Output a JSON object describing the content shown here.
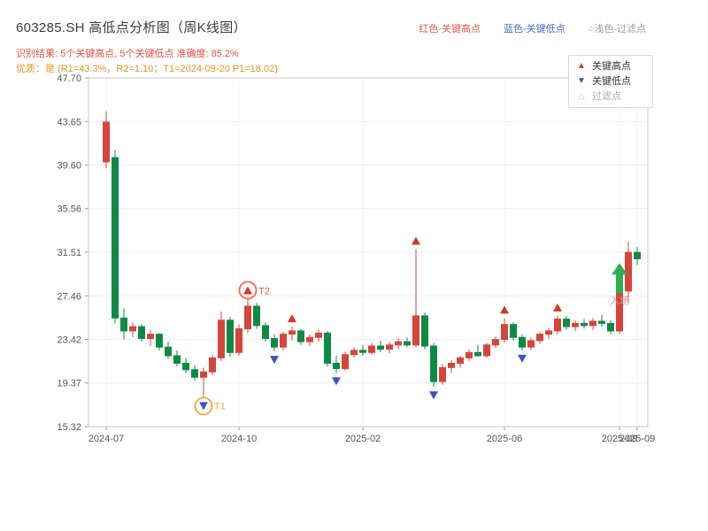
{
  "header": {
    "title": "603285.SH 高低点分析图（周K线图）",
    "top_legend": [
      {
        "text": "红色-关键高点",
        "color": "#e05a4e"
      },
      {
        "text": "蓝色-关键低点",
        "color": "#4769c9"
      },
      {
        "text": "○浅色-过滤点",
        "color": "#9aa0a6"
      }
    ],
    "result_line": "识别结果: 5个关键高点, 5个关键低点  准确度: 85.2%",
    "quality_line": "优质：是 (R1=43.3%，R2=1.10；T1=2024-09-20 P1=18.02)"
  },
  "legend_box": {
    "items": [
      {
        "marker": "▲",
        "color": "#cf3a2b",
        "label": "关键高点",
        "label_color": "#333333"
      },
      {
        "marker": "▼",
        "color": "#3b54c4",
        "label": "关键低点",
        "label_color": "#333333"
      },
      {
        "marker": "△",
        "color": "#c9c9c9",
        "label": "过滤点",
        "label_color": "#aaaaaa"
      }
    ]
  },
  "chart_data": {
    "type": "candlestick",
    "title": "603285.SH 高低点分析图（周K线图）",
    "y_min": 15.32,
    "y_max": 47.7,
    "y_ticks": [
      "15.32",
      "19.37",
      "23.42",
      "27.46",
      "31.51",
      "35.56",
      "39.60",
      "43.65",
      "47.70"
    ],
    "x_ticks": [
      {
        "i": 0,
        "label": "2024-07"
      },
      {
        "i": 15,
        "label": "2024-10"
      },
      {
        "i": 29,
        "label": "2025-02"
      },
      {
        "i": 45,
        "label": "2025-06"
      },
      {
        "i": 58,
        "label": "2025-09"
      },
      {
        "i": 60,
        "label": "2025-09"
      }
    ],
    "colors": {
      "up": "#d5453c",
      "down": "#0f8a46",
      "key_high": "#cf3a2b",
      "key_low": "#3b54c4",
      "entry": "#2fae58",
      "entry_label": "#d99090",
      "circle": "#f2a33c",
      "grid": "#ececec",
      "axis": "#c8c8c8",
      "tick_text": "#555555"
    },
    "candles": [
      {
        "d": "2024-07-05",
        "o": 39.9,
        "h": 44.6,
        "l": 39.3,
        "c": 43.6
      },
      {
        "d": "2024-07-12",
        "o": 40.3,
        "h": 41.0,
        "l": 24.9,
        "c": 25.4
      },
      {
        "d": "2024-07-19",
        "o": 25.4,
        "h": 26.3,
        "l": 23.4,
        "c": 24.2
      },
      {
        "d": "2024-07-26",
        "o": 24.2,
        "h": 25.0,
        "l": 23.6,
        "c": 24.6
      },
      {
        "d": "2024-08-02",
        "o": 24.6,
        "h": 24.8,
        "l": 23.2,
        "c": 23.5
      },
      {
        "d": "2024-08-09",
        "o": 23.5,
        "h": 24.3,
        "l": 22.8,
        "c": 23.9
      },
      {
        "d": "2024-08-16",
        "o": 23.9,
        "h": 24.0,
        "l": 22.4,
        "c": 22.7
      },
      {
        "d": "2024-08-23",
        "o": 22.7,
        "h": 23.2,
        "l": 21.6,
        "c": 21.9
      },
      {
        "d": "2024-08-30",
        "o": 21.9,
        "h": 22.4,
        "l": 20.9,
        "c": 21.2
      },
      {
        "d": "2024-09-06",
        "o": 21.2,
        "h": 21.7,
        "l": 20.3,
        "c": 20.6
      },
      {
        "d": "2024-09-13",
        "o": 20.6,
        "h": 21.0,
        "l": 19.6,
        "c": 19.9
      },
      {
        "d": "2024-09-20",
        "o": 19.9,
        "h": 20.8,
        "l": 18.0,
        "c": 20.4
      },
      {
        "d": "2024-09-27",
        "o": 20.4,
        "h": 22.0,
        "l": 20.1,
        "c": 21.7
      },
      {
        "d": "2024-10-11",
        "o": 21.7,
        "h": 26.0,
        "l": 21.4,
        "c": 25.2
      },
      {
        "d": "2024-10-18",
        "o": 25.2,
        "h": 25.5,
        "l": 21.8,
        "c": 22.2
      },
      {
        "d": "2024-10-25",
        "o": 22.2,
        "h": 24.8,
        "l": 21.9,
        "c": 24.4
      },
      {
        "d": "2024-11-01",
        "o": 24.4,
        "h": 27.2,
        "l": 24.0,
        "c": 26.5
      },
      {
        "d": "2024-11-08",
        "o": 26.5,
        "h": 26.8,
        "l": 24.4,
        "c": 24.7
      },
      {
        "d": "2024-11-15",
        "o": 24.7,
        "h": 25.0,
        "l": 23.2,
        "c": 23.5
      },
      {
        "d": "2024-11-22",
        "o": 23.5,
        "h": 23.9,
        "l": 22.3,
        "c": 22.7
      },
      {
        "d": "2024-11-29",
        "o": 22.7,
        "h": 24.1,
        "l": 22.4,
        "c": 23.9
      },
      {
        "d": "2024-12-06",
        "o": 23.9,
        "h": 24.6,
        "l": 23.3,
        "c": 24.2
      },
      {
        "d": "2024-12-13",
        "o": 24.2,
        "h": 24.4,
        "l": 22.9,
        "c": 23.2
      },
      {
        "d": "2024-12-20",
        "o": 23.2,
        "h": 23.9,
        "l": 22.8,
        "c": 23.6
      },
      {
        "d": "2024-12-27",
        "o": 23.6,
        "h": 24.3,
        "l": 23.2,
        "c": 24.0
      },
      {
        "d": "2025-01-03",
        "o": 24.0,
        "h": 24.2,
        "l": 20.9,
        "c": 21.2
      },
      {
        "d": "2025-01-10",
        "o": 21.2,
        "h": 21.9,
        "l": 20.3,
        "c": 20.7
      },
      {
        "d": "2025-01-17",
        "o": 20.7,
        "h": 22.3,
        "l": 20.5,
        "c": 22.0
      },
      {
        "d": "2025-01-24",
        "o": 22.0,
        "h": 22.7,
        "l": 21.7,
        "c": 22.4
      },
      {
        "d": "2025-02-07",
        "o": 22.4,
        "h": 22.9,
        "l": 21.9,
        "c": 22.2
      },
      {
        "d": "2025-02-14",
        "o": 22.2,
        "h": 23.1,
        "l": 22.0,
        "c": 22.8
      },
      {
        "d": "2025-02-21",
        "o": 22.8,
        "h": 23.3,
        "l": 22.2,
        "c": 22.5
      },
      {
        "d": "2025-02-28",
        "o": 22.5,
        "h": 23.2,
        "l": 22.1,
        "c": 22.9
      },
      {
        "d": "2025-03-07",
        "o": 22.9,
        "h": 23.5,
        "l": 22.5,
        "c": 23.2
      },
      {
        "d": "2025-03-14",
        "o": 23.2,
        "h": 23.6,
        "l": 22.7,
        "c": 22.9
      },
      {
        "d": "2025-03-21",
        "o": 22.9,
        "h": 31.8,
        "l": 22.7,
        "c": 25.6
      },
      {
        "d": "2025-03-28",
        "o": 25.6,
        "h": 25.9,
        "l": 22.5,
        "c": 22.8
      },
      {
        "d": "2025-04-04",
        "o": 22.8,
        "h": 23.1,
        "l": 19.0,
        "c": 19.5
      },
      {
        "d": "2025-04-11",
        "o": 19.5,
        "h": 21.1,
        "l": 19.2,
        "c": 20.8
      },
      {
        "d": "2025-04-18",
        "o": 20.8,
        "h": 21.5,
        "l": 20.3,
        "c": 21.2
      },
      {
        "d": "2025-04-25",
        "o": 21.2,
        "h": 21.9,
        "l": 20.8,
        "c": 21.7
      },
      {
        "d": "2025-05-09",
        "o": 21.7,
        "h": 22.5,
        "l": 21.4,
        "c": 22.2
      },
      {
        "d": "2025-05-16",
        "o": 22.2,
        "h": 22.9,
        "l": 21.8,
        "c": 21.9
      },
      {
        "d": "2025-05-23",
        "o": 21.9,
        "h": 23.1,
        "l": 21.7,
        "c": 22.9
      },
      {
        "d": "2025-05-30",
        "o": 22.9,
        "h": 23.7,
        "l": 22.6,
        "c": 23.4
      },
      {
        "d": "2025-06-06",
        "o": 23.4,
        "h": 25.4,
        "l": 23.1,
        "c": 24.8
      },
      {
        "d": "2025-06-13",
        "o": 24.8,
        "h": 25.0,
        "l": 23.3,
        "c": 23.6
      },
      {
        "d": "2025-06-20",
        "o": 23.6,
        "h": 23.9,
        "l": 22.4,
        "c": 22.7
      },
      {
        "d": "2025-06-27",
        "o": 22.7,
        "h": 23.6,
        "l": 22.4,
        "c": 23.3
      },
      {
        "d": "2025-07-04",
        "o": 23.3,
        "h": 24.1,
        "l": 23.0,
        "c": 23.9
      },
      {
        "d": "2025-07-11",
        "o": 23.9,
        "h": 24.5,
        "l": 23.5,
        "c": 24.2
      },
      {
        "d": "2025-07-18",
        "o": 24.2,
        "h": 25.6,
        "l": 23.9,
        "c": 25.3
      },
      {
        "d": "2025-07-25",
        "o": 25.3,
        "h": 25.6,
        "l": 24.3,
        "c": 24.6
      },
      {
        "d": "2025-08-01",
        "o": 24.6,
        "h": 25.2,
        "l": 24.2,
        "c": 24.9
      },
      {
        "d": "2025-08-08",
        "o": 24.9,
        "h": 25.3,
        "l": 24.4,
        "c": 24.7
      },
      {
        "d": "2025-08-15",
        "o": 24.7,
        "h": 25.4,
        "l": 24.3,
        "c": 25.1
      },
      {
        "d": "2025-08-22",
        "o": 25.1,
        "h": 25.7,
        "l": 24.6,
        "c": 24.9
      },
      {
        "d": "2025-08-29",
        "o": 24.9,
        "h": 25.2,
        "l": 23.9,
        "c": 24.2
      },
      {
        "d": "2025-09-05",
        "o": 24.2,
        "h": 28.3,
        "l": 23.9,
        "c": 27.9
      },
      {
        "d": "2025-09-12",
        "o": 27.9,
        "h": 32.5,
        "l": 26.8,
        "c": 31.5
      },
      {
        "d": "2025-09-19",
        "o": 31.5,
        "h": 32.0,
        "l": 30.3,
        "c": 30.9
      }
    ],
    "key_highs": [
      {
        "i": 16,
        "price": 27.2,
        "label": "T2",
        "circled": true,
        "circle_color": "#ef6a4c",
        "label_color": "#e05a4e"
      },
      {
        "i": 21,
        "price": 24.6
      },
      {
        "i": 35,
        "price": 31.8
      },
      {
        "i": 45,
        "price": 25.4
      },
      {
        "i": 51,
        "price": 25.6
      }
    ],
    "key_lows": [
      {
        "i": 11,
        "price": 18.0,
        "label": "T1",
        "circled": true,
        "circle_color": "#f0a63e",
        "label_color": "#f0a63e"
      },
      {
        "i": 19,
        "price": 22.3
      },
      {
        "i": 26,
        "price": 20.3
      },
      {
        "i": 37,
        "price": 19.0
      },
      {
        "i": 47,
        "price": 22.4
      }
    ],
    "entry_marker": {
      "i": 58,
      "tip_price": 30.5,
      "base_price": 27.7,
      "label": "入场"
    }
  }
}
